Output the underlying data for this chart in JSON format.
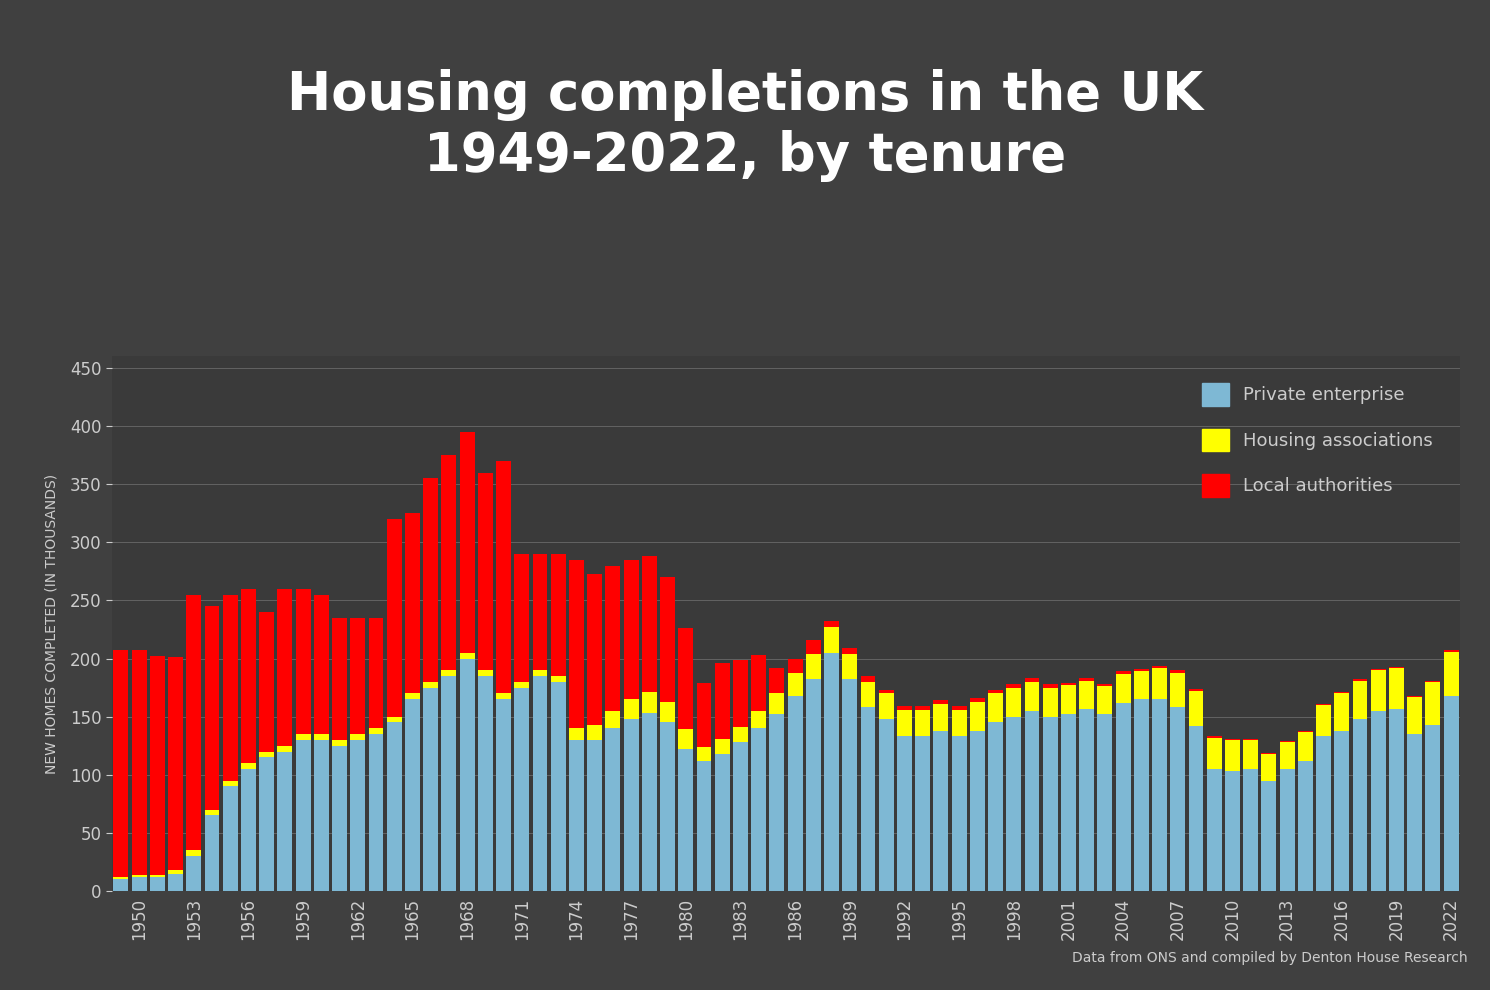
{
  "title": "Housing completions in the UK\n1949-2022, by tenure",
  "ylabel": "NEW HOMES COMPLETED (IN THOUSANDS)",
  "source": "Data from ONS and compiled by Denton House Research",
  "background_color": "#404040",
  "plot_bg_color": "#3a3a3a",
  "grid_color": "#999999",
  "title_color": "#ffffff",
  "axis_color": "#cccccc",
  "years": [
    1949,
    1950,
    1951,
    1952,
    1953,
    1954,
    1955,
    1956,
    1957,
    1958,
    1959,
    1960,
    1961,
    1962,
    1963,
    1964,
    1965,
    1966,
    1967,
    1968,
    1969,
    1970,
    1971,
    1972,
    1973,
    1974,
    1975,
    1976,
    1977,
    1978,
    1979,
    1980,
    1981,
    1982,
    1983,
    1984,
    1985,
    1986,
    1987,
    1988,
    1989,
    1990,
    1991,
    1992,
    1993,
    1994,
    1995,
    1996,
    1997,
    1998,
    1999,
    2000,
    2001,
    2002,
    2003,
    2004,
    2005,
    2006,
    2007,
    2008,
    2009,
    2010,
    2011,
    2012,
    2013,
    2014,
    2015,
    2016,
    2017,
    2018,
    2019,
    2020,
    2021,
    2022
  ],
  "private": [
    10,
    12,
    12,
    15,
    30,
    65,
    90,
    105,
    115,
    120,
    130,
    130,
    125,
    130,
    135,
    145,
    165,
    175,
    185,
    200,
    185,
    165,
    175,
    185,
    180,
    130,
    130,
    140,
    148,
    153,
    145,
    122,
    112,
    118,
    128,
    140,
    152,
    168,
    182,
    205,
    182,
    158,
    148,
    133,
    133,
    138,
    133,
    138,
    145,
    150,
    155,
    150,
    152,
    157,
    152,
    162,
    165,
    165,
    158,
    142,
    105,
    103,
    105,
    95,
    105,
    112,
    133,
    138,
    148,
    155,
    157,
    135,
    143,
    168
  ],
  "housing_assoc": [
    2,
    2,
    2,
    3,
    5,
    5,
    5,
    5,
    5,
    5,
    5,
    5,
    5,
    5,
    5,
    5,
    5,
    5,
    5,
    5,
    5,
    5,
    5,
    5,
    5,
    10,
    13,
    15,
    17,
    18,
    18,
    17,
    12,
    13,
    13,
    15,
    18,
    20,
    22,
    22,
    22,
    22,
    22,
    23,
    23,
    23,
    23,
    25,
    25,
    25,
    25,
    25,
    25,
    24,
    24,
    25,
    24,
    27,
    30,
    30,
    27,
    27,
    25,
    23,
    23,
    25,
    27,
    32,
    33,
    35,
    35,
    32,
    37,
    38
  ],
  "local_auth": [
    195,
    193,
    188,
    183,
    220,
    175,
    160,
    150,
    120,
    135,
    125,
    120,
    105,
    100,
    95,
    170,
    155,
    175,
    185,
    190,
    170,
    200,
    110,
    100,
    105,
    145,
    130,
    125,
    120,
    117,
    107,
    87,
    55,
    65,
    58,
    48,
    22,
    12,
    12,
    5,
    5,
    5,
    3,
    3,
    3,
    3,
    3,
    3,
    3,
    3,
    3,
    3,
    2,
    2,
    2,
    2,
    2,
    2,
    2,
    2,
    1,
    1,
    1,
    1,
    1,
    1,
    1,
    1,
    1,
    1,
    1,
    1,
    1,
    1
  ],
  "ylim": [
    0,
    460
  ],
  "yticks": [
    0,
    50,
    100,
    150,
    200,
    250,
    300,
    350,
    400,
    450
  ],
  "private_color": "#7eb8d4",
  "housing_assoc_color": "#ffff00",
  "local_auth_color": "#ff0000"
}
